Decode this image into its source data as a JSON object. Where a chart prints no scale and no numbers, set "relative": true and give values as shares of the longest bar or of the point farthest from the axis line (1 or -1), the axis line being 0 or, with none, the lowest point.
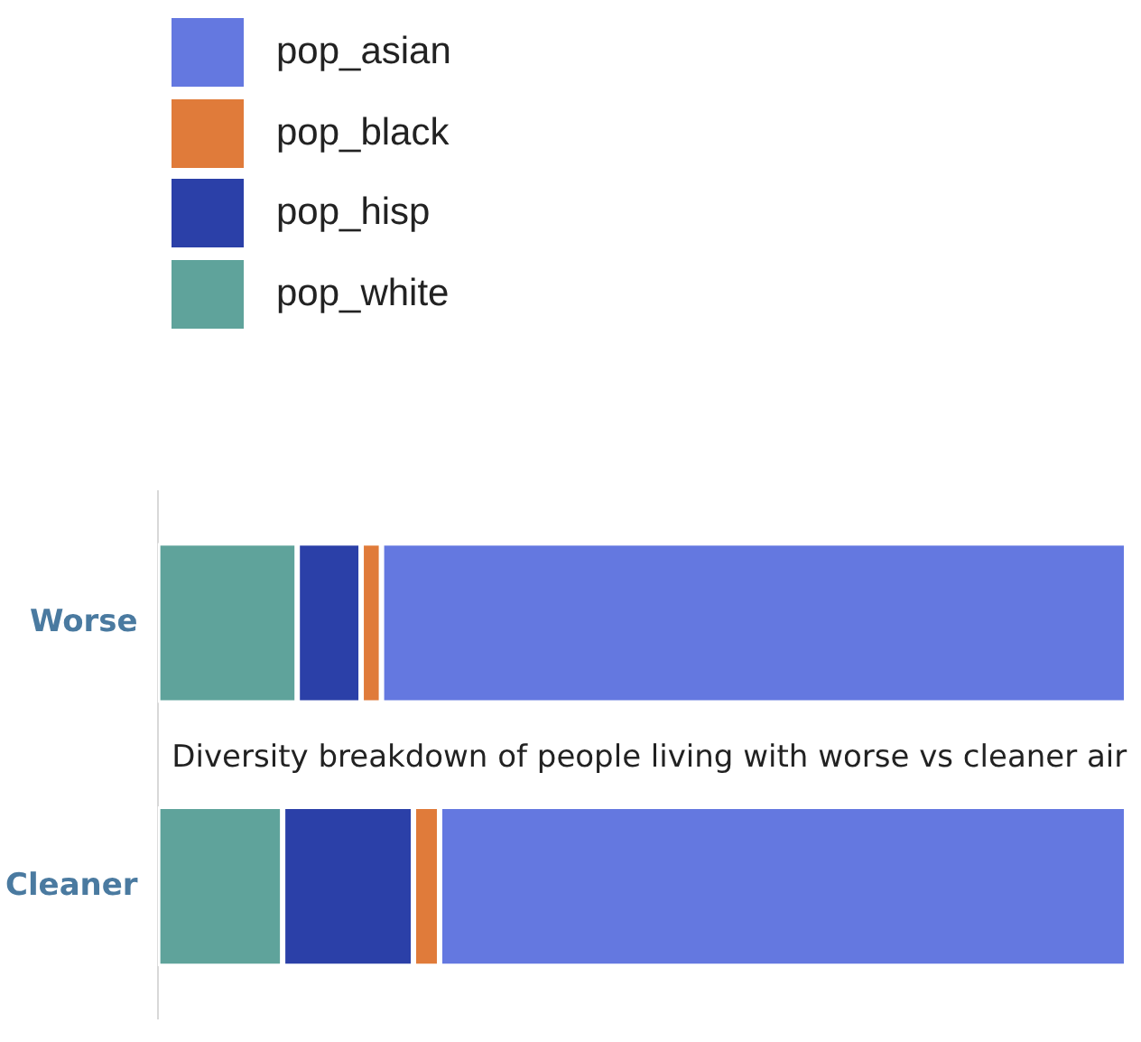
{
  "chart_data": {
    "type": "bar",
    "orientation": "horizontal",
    "stacked": true,
    "relative": true,
    "title": "Diversity breakdown of people living with worse vs cleaner air",
    "categories": [
      "Worse",
      "Cleaner"
    ],
    "legend": "top left",
    "series": [
      {
        "name": "pop_white",
        "color": "#5fa39b",
        "values": [
          0.144,
          0.129
        ]
      },
      {
        "name": "pop_hisp",
        "color": "#2b40a8",
        "values": [
          0.066,
          0.135
        ]
      },
      {
        "name": "pop_black",
        "color": "#e07b3a",
        "values": [
          0.021,
          0.027
        ]
      },
      {
        "name": "pop_asian",
        "color": "#6478e0",
        "values": [
          0.769,
          0.709
        ]
      }
    ]
  }
}
